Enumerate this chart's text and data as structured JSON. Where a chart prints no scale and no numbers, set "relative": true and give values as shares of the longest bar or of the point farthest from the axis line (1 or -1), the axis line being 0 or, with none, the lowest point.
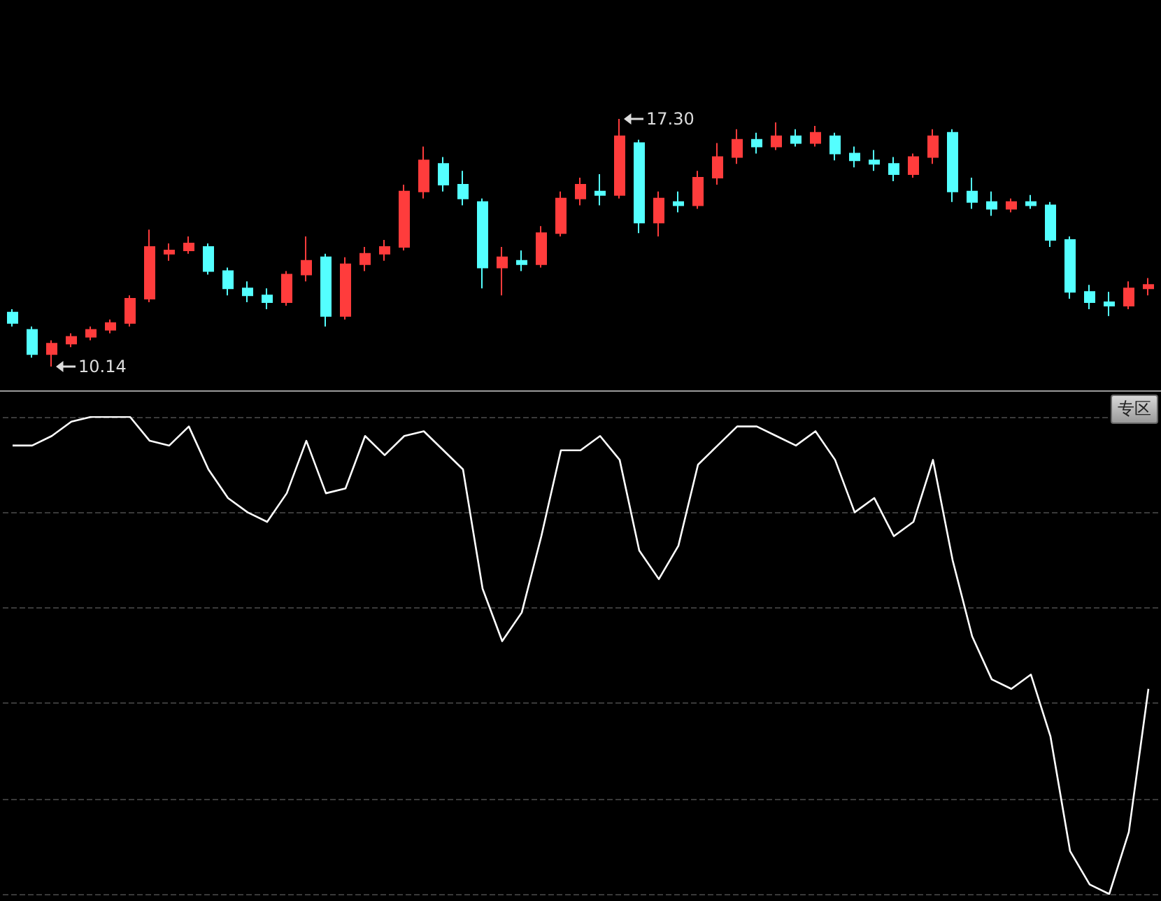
{
  "chart_data": [
    {
      "type": "candlestick",
      "categories": [
        null,
        null,
        null,
        null,
        null,
        null,
        null,
        null,
        null,
        null,
        null,
        null,
        null,
        null,
        null,
        null,
        null,
        null,
        null,
        null,
        null,
        null,
        null,
        null,
        null,
        null,
        null,
        null,
        null,
        null,
        null,
        null,
        null,
        null,
        null,
        null,
        null,
        null,
        null,
        null,
        null,
        null,
        null,
        null,
        null,
        null,
        null,
        null,
        null,
        null,
        null,
        null,
        null,
        null,
        null,
        null,
        null,
        null,
        null
      ],
      "series": [
        {
          "colors": [
            "#54ffff",
            "#54ffff",
            "#ff3c3c",
            "#ff3c3c",
            "#ff3c3c",
            "#ff3c3c",
            "#ff3c3c",
            "#ff3c3c",
            "#ff3c3c",
            "#ff3c3c",
            "#54ffff",
            "#54ffff",
            "#54ffff",
            "#54ffff",
            "#ff3c3c",
            "#ff3c3c",
            "#54ffff",
            "#ff3c3c",
            "#ff3c3c",
            "#ff3c3c",
            "#ff3c3c",
            "#ff3c3c",
            "#54ffff",
            "#54ffff",
            "#54ffff",
            "#ff3c3c",
            "#54ffff",
            "#ff3c3c",
            "#ff3c3c",
            "#ff3c3c",
            "#54ffff",
            "#ff3c3c",
            "#54ffff",
            "#ff3c3c",
            "#54ffff",
            "#ff3c3c",
            "#ff3c3c",
            "#ff3c3c",
            "#54ffff",
            "#ff3c3c",
            "#54ffff",
            "#ff3c3c",
            "#54ffff",
            "#54ffff",
            "#54ffff",
            "#54ffff",
            "#ff3c3c",
            "#ff3c3c",
            "#54ffff",
            "#54ffff",
            "#54ffff",
            "#ff3c3c",
            "#54ffff",
            "#54ffff",
            "#54ffff",
            "#54ffff",
            "#54ffff",
            "#ff3c3c",
            "#ff3c3c"
          ],
          "ohlc": [
            [
              11.7,
              11.8,
              11.3,
              11.4
            ],
            [
              11.2,
              11.3,
              10.4,
              10.5
            ],
            [
              10.5,
              10.9,
              10.14,
              10.8
            ],
            [
              10.8,
              11.1,
              10.7,
              11.0
            ],
            [
              11.0,
              11.3,
              10.9,
              11.2
            ],
            [
              11.2,
              11.5,
              11.1,
              11.4
            ],
            [
              11.4,
              12.2,
              11.3,
              12.1
            ],
            [
              12.1,
              14.1,
              12.0,
              13.6
            ],
            [
              13.4,
              13.7,
              13.2,
              13.5
            ],
            [
              13.5,
              13.9,
              13.4,
              13.7
            ],
            [
              13.6,
              13.7,
              12.8,
              12.9
            ],
            [
              12.9,
              13.0,
              12.2,
              12.4
            ],
            [
              12.4,
              12.6,
              12.0,
              12.2
            ],
            [
              12.2,
              12.4,
              11.8,
              12.0
            ],
            [
              12.0,
              12.9,
              11.9,
              12.8
            ],
            [
              12.8,
              13.9,
              12.6,
              13.2
            ],
            [
              13.3,
              13.4,
              11.3,
              11.6
            ],
            [
              11.6,
              13.3,
              11.5,
              13.1
            ],
            [
              13.1,
              13.6,
              12.9,
              13.4
            ],
            [
              13.4,
              13.8,
              13.2,
              13.6
            ],
            [
              13.6,
              15.4,
              13.5,
              15.2
            ],
            [
              15.2,
              16.5,
              15.0,
              16.1
            ],
            [
              16.0,
              16.2,
              15.2,
              15.4
            ],
            [
              15.4,
              15.8,
              14.8,
              15.0
            ],
            [
              14.9,
              15.0,
              12.4,
              13.0
            ],
            [
              13.0,
              13.6,
              12.2,
              13.3
            ],
            [
              13.2,
              13.5,
              12.9,
              13.1
            ],
            [
              13.1,
              14.2,
              13.0,
              14.0
            ],
            [
              14.0,
              15.2,
              13.9,
              15.0
            ],
            [
              15.0,
              15.6,
              14.8,
              15.4
            ],
            [
              15.2,
              15.7,
              14.8,
              15.1
            ],
            [
              15.1,
              17.3,
              15.0,
              16.8
            ],
            [
              16.6,
              16.7,
              14.0,
              14.3
            ],
            [
              14.3,
              15.2,
              13.9,
              15.0
            ],
            [
              14.9,
              15.2,
              14.6,
              14.8
            ],
            [
              14.8,
              15.8,
              14.7,
              15.6
            ],
            [
              15.6,
              16.6,
              15.4,
              16.2
            ],
            [
              16.2,
              17.0,
              16.0,
              16.7
            ],
            [
              16.7,
              16.9,
              16.3,
              16.5
            ],
            [
              16.5,
              17.2,
              16.4,
              16.8
            ],
            [
              16.8,
              17.0,
              16.5,
              16.6
            ],
            [
              16.6,
              17.1,
              16.5,
              16.9
            ],
            [
              16.8,
              16.9,
              16.1,
              16.3
            ],
            [
              16.3,
              16.5,
              15.9,
              16.1
            ],
            [
              16.1,
              16.4,
              15.8,
              16.0
            ],
            [
              16.0,
              16.2,
              15.5,
              15.7
            ],
            [
              15.7,
              16.3,
              15.6,
              16.2
            ],
            [
              16.2,
              17.0,
              16.0,
              16.8
            ],
            [
              16.9,
              17.0,
              14.9,
              15.2
            ],
            [
              15.2,
              15.6,
              14.7,
              14.9
            ],
            [
              14.9,
              15.2,
              14.5,
              14.7
            ],
            [
              14.7,
              15.0,
              14.6,
              14.9
            ],
            [
              14.9,
              15.1,
              14.7,
              14.8
            ],
            [
              14.8,
              14.9,
              13.6,
              13.8
            ],
            [
              13.8,
              13.9,
              12.1,
              12.3
            ],
            [
              12.3,
              12.5,
              11.8,
              12.0
            ],
            [
              12.0,
              12.3,
              11.6,
              11.9
            ],
            [
              11.9,
              12.6,
              11.8,
              12.4
            ],
            [
              12.4,
              12.7,
              12.2,
              12.5
            ]
          ]
        }
      ],
      "annotations": [
        "17.30",
        "10.14"
      ]
    },
    {
      "type": "line",
      "relative": true,
      "grid": "y",
      "marker": "none",
      "categories": [
        null,
        null,
        null,
        null,
        null,
        null,
        null,
        null,
        null,
        null,
        null,
        null,
        null,
        null,
        null,
        null,
        null,
        null,
        null,
        null,
        null,
        null,
        null,
        null,
        null,
        null,
        null,
        null,
        null,
        null,
        null,
        null,
        null,
        null,
        null,
        null,
        null,
        null,
        null,
        null,
        null,
        null,
        null,
        null,
        null,
        null,
        null,
        null,
        null,
        null,
        null,
        null,
        null,
        null,
        null,
        null,
        null,
        null,
        null
      ],
      "series": [
        {
          "color": "#ffffff",
          "values": [
            0.94,
            0.94,
            0.96,
            0.99,
            1.0,
            1.0,
            1.0,
            0.95,
            0.94,
            0.98,
            0.89,
            0.83,
            0.8,
            0.78,
            0.84,
            0.95,
            0.84,
            0.85,
            0.96,
            0.92,
            0.96,
            0.97,
            0.93,
            0.89,
            0.64,
            0.53,
            0.59,
            0.75,
            0.93,
            0.93,
            0.96,
            0.91,
            0.72,
            0.66,
            0.73,
            0.9,
            0.94,
            0.98,
            0.98,
            0.96,
            0.94,
            0.97,
            0.91,
            0.8,
            0.83,
            0.75,
            0.78,
            0.91,
            0.7,
            0.54,
            0.45,
            0.43,
            0.46,
            0.33,
            0.09,
            0.02,
            0.0,
            0.13,
            0.43
          ]
        }
      ],
      "annotations": [
        "专区"
      ]
    }
  ]
}
